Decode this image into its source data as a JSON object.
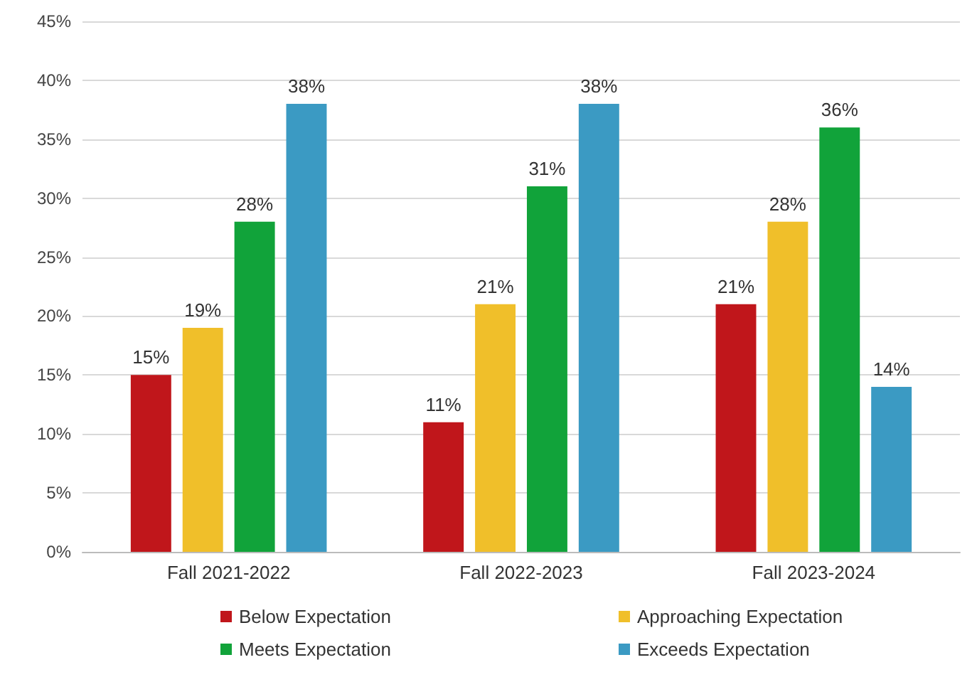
{
  "chart_data": {
    "type": "bar",
    "categories": [
      "Fall 2021-2022",
      "Fall 2022-2023",
      "Fall 2023-2024"
    ],
    "series": [
      {
        "name": "Below Expectation",
        "color": "#c0161b",
        "values": [
          15,
          11,
          21
        ],
        "value_labels": [
          "15%",
          "11%",
          "21%"
        ]
      },
      {
        "name": "Approaching Expectation",
        "color": "#f0bf2a",
        "values": [
          19,
          21,
          28
        ],
        "value_labels": [
          "19%",
          "21%",
          "28%"
        ]
      },
      {
        "name": "Meets Expectation",
        "color": "#11a33a",
        "values": [
          28,
          31,
          36
        ],
        "value_labels": [
          "28%",
          "31%",
          "36%"
        ]
      },
      {
        "name": "Exceeds Expectation",
        "color": "#3b9ac3",
        "values": [
          38,
          38,
          14
        ],
        "value_labels": [
          "38%",
          "38%",
          "14%"
        ]
      }
    ],
    "ylim": [
      0,
      45
    ],
    "yticks": [
      {
        "value": 0,
        "label": "0%"
      },
      {
        "value": 5,
        "label": "5%"
      },
      {
        "value": 10,
        "label": "10%"
      },
      {
        "value": 15,
        "label": "15%"
      },
      {
        "value": 20,
        "label": "20%"
      },
      {
        "value": 25,
        "label": "25%"
      },
      {
        "value": 30,
        "label": "30%"
      },
      {
        "value": 35,
        "label": "35%"
      },
      {
        "value": 40,
        "label": "40%"
      },
      {
        "value": 45,
        "label": "45%"
      }
    ],
    "grid": true,
    "legend": "bottom"
  }
}
